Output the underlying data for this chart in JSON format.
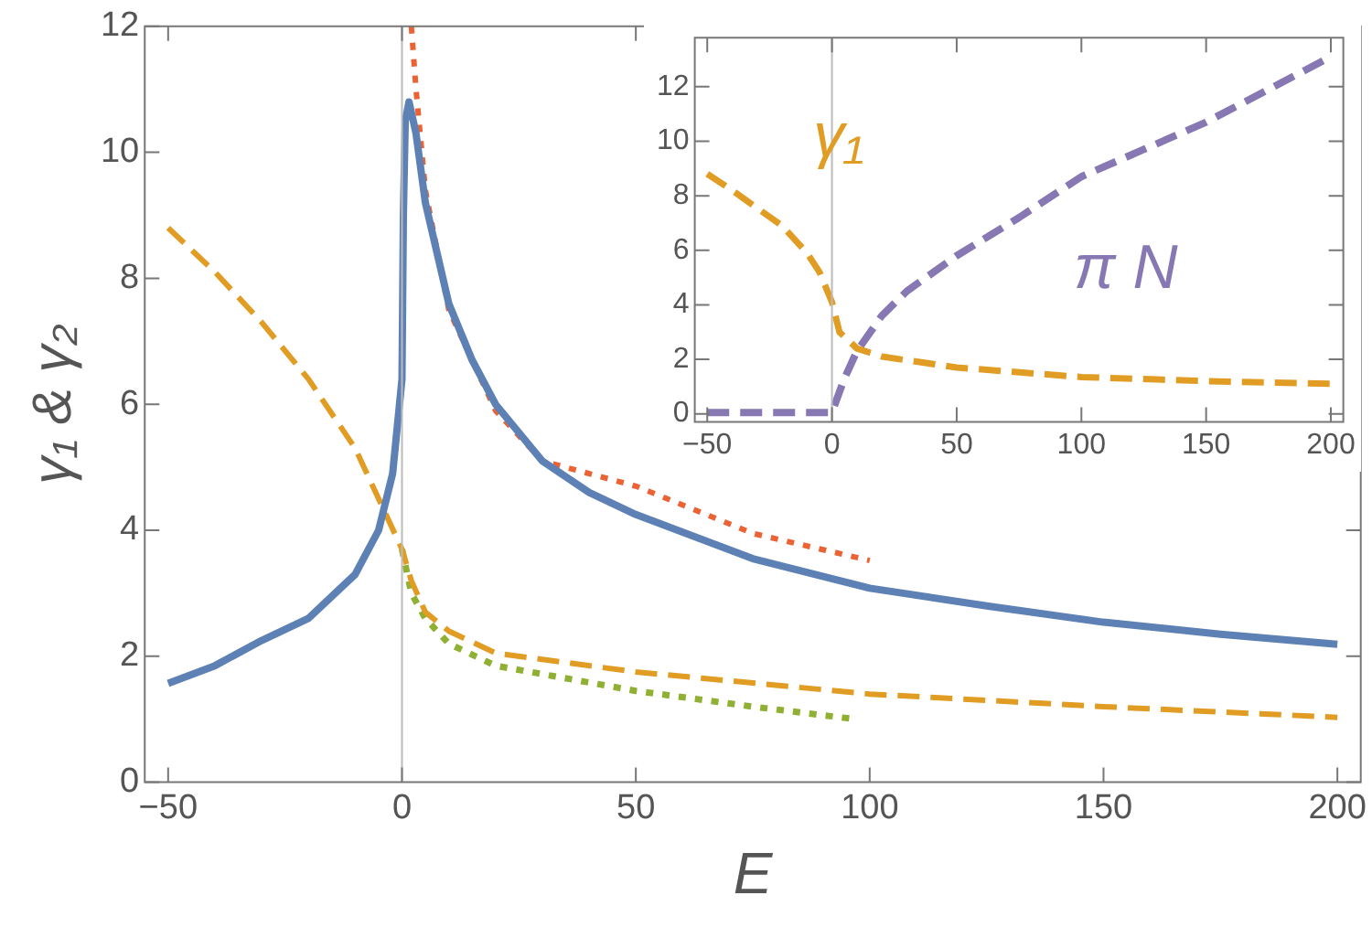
{
  "chart_data": [
    {
      "type": "line",
      "xlabel": "E",
      "ylabel": "γ₁ & γ₂",
      "xlim": [
        -55,
        205
      ],
      "ylim": [
        0,
        12
      ],
      "xticks": [
        {
          "value": -50,
          "label": "−50"
        },
        0,
        50,
        100,
        150,
        200
      ],
      "yticks": [
        0,
        2,
        4,
        6,
        8,
        10,
        12
      ],
      "ref_lines": [
        {
          "axis": "x",
          "value": 0,
          "color": "#bbbbbb"
        }
      ],
      "series": [
        {
          "color": "#5e81b5",
          "line_style": "solid",
          "x": [
            -50,
            -40,
            -30,
            -20,
            -10,
            -5,
            -2,
            0,
            0.3,
            0.7,
            1.5,
            3,
            5,
            10,
            15,
            20,
            30,
            40,
            50,
            75,
            100,
            125,
            150,
            175,
            200
          ],
          "values": [
            1.57,
            1.85,
            2.25,
            2.6,
            3.3,
            4.0,
            4.9,
            6.4,
            9.0,
            10.5,
            10.8,
            10.3,
            9.2,
            7.6,
            6.7,
            6.0,
            5.1,
            4.6,
            4.25,
            3.55,
            3.08,
            2.8,
            2.54,
            2.35,
            2.19
          ]
        },
        {
          "color": "#e19c24",
          "line_style": "dashed",
          "x": [
            -50,
            -40,
            -30,
            -20,
            -10,
            -5,
            0,
            2,
            5,
            10,
            20,
            50,
            100,
            150,
            200
          ],
          "values": [
            8.8,
            8.1,
            7.3,
            6.4,
            5.3,
            4.5,
            3.7,
            3.2,
            2.7,
            2.4,
            2.05,
            1.75,
            1.4,
            1.2,
            1.03
          ]
        },
        {
          "color": "#eb6235",
          "line_style": "dotted",
          "x": [
            2,
            3,
            5,
            10,
            20,
            30,
            50,
            75,
            100
          ],
          "values": [
            12,
            11,
            9.4,
            7.5,
            5.9,
            5.1,
            4.7,
            3.95,
            3.52
          ]
        },
        {
          "color": "#8fb032",
          "line_style": "dotted",
          "x": [
            0,
            2,
            5,
            10,
            20,
            50,
            75,
            97
          ],
          "values": [
            3.7,
            3.0,
            2.6,
            2.2,
            1.85,
            1.45,
            1.2,
            1.0
          ]
        }
      ]
    },
    {
      "type": "line",
      "xlim": [
        -55,
        205
      ],
      "ylim": [
        -0.3,
        13.8
      ],
      "xticks": [
        {
          "value": -50,
          "label": "−50"
        },
        0,
        50,
        100,
        150,
        200
      ],
      "yticks": [
        0,
        2,
        4,
        6,
        8,
        10,
        12
      ],
      "ref_lines": [
        {
          "axis": "x",
          "value": 0,
          "color": "#bbbbbb"
        }
      ],
      "series": [
        {
          "name": "γ₁",
          "color": "#e19c24",
          "line_style": "dashed",
          "x": [
            -50,
            -40,
            -20,
            -10,
            -5,
            0,
            3,
            10,
            20,
            50,
            100,
            150,
            200
          ],
          "values": [
            8.8,
            8.2,
            6.9,
            5.9,
            5.2,
            4.1,
            3.0,
            2.4,
            2.1,
            1.7,
            1.35,
            1.2,
            1.1
          ]
        },
        {
          "name": "π N",
          "color": "#8778b3",
          "line_style": "dashed",
          "x": [
            -50,
            0,
            5,
            10,
            20,
            30,
            50,
            75,
            100,
            125,
            150,
            175,
            200
          ],
          "values": [
            0.05,
            0.05,
            1.3,
            2.3,
            3.6,
            4.5,
            5.8,
            7.2,
            8.7,
            9.7,
            10.7,
            11.9,
            13.1
          ]
        }
      ]
    }
  ]
}
